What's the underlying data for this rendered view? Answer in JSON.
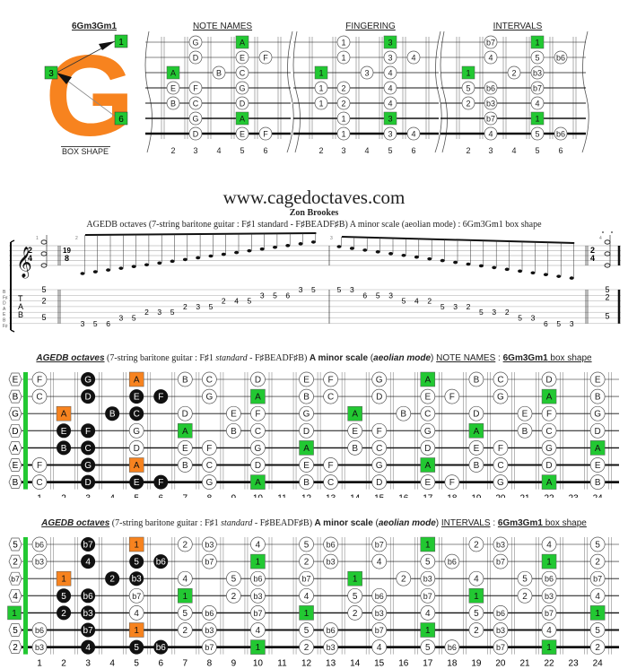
{
  "header": {
    "shape_name": "6Gm3Gm1",
    "shape_letter": "G",
    "box_shape_label": "BOX SHAPE",
    "markers": [
      "1",
      "3",
      "6"
    ],
    "colors": {
      "orange": "#f7831f",
      "green": "#22c832",
      "black": "#111111"
    }
  },
  "mini_diagrams": [
    {
      "title": "NOTE NAMES",
      "frets": [
        "2",
        "3",
        "4",
        "5",
        "6"
      ],
      "rows": [
        [
          null,
          "G",
          null,
          "A*",
          null
        ],
        [
          null,
          "D",
          null,
          "E",
          "F"
        ],
        [
          "A*",
          null,
          "B",
          "C",
          null
        ],
        [
          "E",
          "F",
          null,
          "G",
          null
        ],
        [
          "B",
          "C",
          null,
          "D",
          null
        ],
        [
          null,
          "G",
          null,
          "A*",
          null
        ],
        [
          null,
          "D",
          null,
          "E",
          "F"
        ]
      ]
    },
    {
      "title": "FINGERING",
      "frets": [
        "2",
        "3",
        "4",
        "5",
        "6"
      ],
      "rows": [
        [
          null,
          "1",
          null,
          "3*",
          null
        ],
        [
          null,
          "1",
          null,
          "3",
          "4"
        ],
        [
          "1*",
          null,
          "3",
          "4",
          null
        ],
        [
          "1",
          "2",
          null,
          "4",
          null
        ],
        [
          "1",
          "2",
          null,
          "4",
          null
        ],
        [
          null,
          "1",
          null,
          "3*",
          null
        ],
        [
          null,
          "1",
          null,
          "3",
          "4"
        ]
      ]
    },
    {
      "title": "INTERVALS",
      "frets": [
        "2",
        "3",
        "4",
        "5",
        "6"
      ],
      "rows": [
        [
          null,
          "b7",
          null,
          "1*",
          null
        ],
        [
          null,
          "4",
          null,
          "5",
          "b6"
        ],
        [
          "1*",
          null,
          "2",
          "b3",
          null
        ],
        [
          "5",
          "b6",
          null,
          "b7",
          null
        ],
        [
          "2",
          "b3",
          null,
          "4",
          null
        ],
        [
          null,
          "b7",
          null,
          "1*",
          null
        ],
        [
          null,
          "4",
          null,
          "5",
          "b6"
        ]
      ]
    }
  ],
  "site": {
    "url": "www.cagedoctaves.com",
    "author": "Zon Brookes",
    "subtitle": "AGEDB octaves (7-string baritone guitar : F♯1 standard - F♯BEADF♯B) A minor scale (aeolian mode) : 6Gm3Gm1 box shape"
  },
  "notation": {
    "time_sig_1": [
      "2",
      "4"
    ],
    "time_sig_2": [
      "19",
      "8"
    ],
    "tab_label": [
      "T",
      "A",
      "B"
    ],
    "tuning_labels": [
      "B",
      "F♯",
      "D",
      "A",
      "E",
      "B",
      "F♯"
    ],
    "measure_numbers": [
      "1",
      "2",
      "3",
      "4"
    ],
    "chord_tab": [
      "5",
      "2",
      "5"
    ],
    "ascending_tab": [
      {
        "s": 7,
        "f": "3"
      },
      {
        "s": 7,
        "f": "5"
      },
      {
        "s": 7,
        "f": "6"
      },
      {
        "s": 6,
        "f": "3"
      },
      {
        "s": 6,
        "f": "5"
      },
      {
        "s": 5,
        "f": "2"
      },
      {
        "s": 5,
        "f": "3"
      },
      {
        "s": 5,
        "f": "5"
      },
      {
        "s": 4,
        "f": "2"
      },
      {
        "s": 4,
        "f": "3"
      },
      {
        "s": 4,
        "f": "5"
      },
      {
        "s": 3,
        "f": "2"
      },
      {
        "s": 3,
        "f": "4"
      },
      {
        "s": 3,
        "f": "5"
      },
      {
        "s": 2,
        "f": "3"
      },
      {
        "s": 2,
        "f": "5"
      },
      {
        "s": 2,
        "f": "6"
      },
      {
        "s": 1,
        "f": "3"
      },
      {
        "s": 1,
        "f": "5"
      }
    ],
    "descending_tab": [
      {
        "s": 1,
        "f": "5"
      },
      {
        "s": 1,
        "f": "3"
      },
      {
        "s": 2,
        "f": "6"
      },
      {
        "s": 2,
        "f": "5"
      },
      {
        "s": 2,
        "f": "3"
      },
      {
        "s": 3,
        "f": "5"
      },
      {
        "s": 3,
        "f": "4"
      },
      {
        "s": 3,
        "f": "2"
      },
      {
        "s": 4,
        "f": "5"
      },
      {
        "s": 4,
        "f": "3"
      },
      {
        "s": 4,
        "f": "2"
      },
      {
        "s": 5,
        "f": "5"
      },
      {
        "s": 5,
        "f": "3"
      },
      {
        "s": 5,
        "f": "2"
      },
      {
        "s": 6,
        "f": "5"
      },
      {
        "s": 6,
        "f": "3"
      },
      {
        "s": 7,
        "f": "6"
      },
      {
        "s": 7,
        "f": "5"
      },
      {
        "s": 7,
        "f": "3"
      }
    ]
  },
  "fretboard_notes": {
    "title_bold_italic": "AGEDB octaves",
    "title_mid": " (7-string baritone guitar : F♯1 ",
    "title_italic": "standard",
    "title_mid2": " - F♯BEADF♯B) ",
    "title_bold": "A minor scale",
    "title_paren_open": " (",
    "title_bold_italic2": "aeolian mode",
    "title_paren_close": ") ",
    "title_section": "NOTE NAMES",
    "title_colon": " : ",
    "title_shape": "6Gm3Gm1",
    "title_tail": " box shape",
    "open": [
      "E",
      "B",
      "G",
      "D",
      "A",
      "E",
      "B"
    ],
    "strings": [
      {
        "1": "F",
        "3": "G#",
        "5": "A^",
        "7": "B",
        "8": "C",
        "10": "D",
        "12": "E",
        "13": "F",
        "15": "G",
        "17": "A*",
        "19": "B",
        "20": "C",
        "22": "D",
        "24": "E"
      },
      {
        "1": "C",
        "3": "D#",
        "5": "E#",
        "6": "F#",
        "8": "G",
        "10": "A*",
        "12": "B",
        "13": "C",
        "15": "D",
        "17": "E",
        "18": "F",
        "20": "G",
        "22": "A*",
        "24": "B"
      },
      {
        "2": "A^",
        "4": "B#",
        "5": "C#",
        "7": "D",
        "9": "E",
        "10": "F",
        "12": "G",
        "14": "A*",
        "16": "B",
        "17": "C",
        "19": "D",
        "21": "E",
        "22": "F",
        "24": "G"
      },
      {
        "2": "E#",
        "3": "F#",
        "5": "G",
        "7": "A*",
        "9": "B",
        "10": "C",
        "12": "D",
        "14": "E",
        "15": "F",
        "17": "G",
        "19": "A*",
        "21": "B",
        "22": "C",
        "24": "D"
      },
      {
        "0": "A*",
        "2": "B#",
        "3": "C#",
        "5": "D",
        "7": "E",
        "8": "F",
        "10": "G",
        "12": "A*",
        "14": "B",
        "15": "C",
        "17": "D",
        "19": "E",
        "20": "F",
        "22": "G",
        "24": "A*"
      },
      {
        "1": "F",
        "3": "G#",
        "5": "A^",
        "7": "B",
        "8": "C",
        "10": "D",
        "12": "E",
        "13": "F",
        "15": "G",
        "17": "A*",
        "19": "B",
        "20": "C",
        "22": "D",
        "24": "E"
      },
      {
        "1": "C",
        "3": "D#",
        "5": "E#",
        "6": "F#",
        "8": "G",
        "10": "A*",
        "12": "B",
        "13": "C",
        "15": "D",
        "17": "E",
        "18": "F",
        "20": "G",
        "22": "A*",
        "24": "B"
      }
    ],
    "frets": [
      "1",
      "2",
      "3",
      "4",
      "5",
      "6",
      "7",
      "8",
      "9",
      "10",
      "11",
      "12",
      "13",
      "14",
      "15",
      "16",
      "17",
      "18",
      "19",
      "20",
      "21",
      "22",
      "23",
      "24"
    ]
  },
  "fretboard_intervals": {
    "title_section": "INTERVALS",
    "open": [
      "5",
      "2",
      "b7",
      "4",
      "1*",
      "5",
      "2"
    ],
    "strings": [
      {
        "1": "b6",
        "3": "b7#",
        "5": "1^",
        "7": "2",
        "8": "b3",
        "10": "4",
        "12": "5",
        "13": "b6",
        "15": "b7",
        "17": "1*",
        "19": "2",
        "20": "b3",
        "22": "4",
        "24": "5"
      },
      {
        "1": "b3",
        "3": "4#",
        "5": "5#",
        "6": "b6#",
        "8": "b7",
        "10": "1*",
        "12": "2",
        "13": "b3",
        "15": "4",
        "17": "5",
        "18": "b6",
        "20": "b7",
        "22": "1*",
        "24": "2"
      },
      {
        "2": "1^",
        "4": "2#",
        "5": "b3#",
        "7": "4",
        "9": "5",
        "10": "b6",
        "12": "b7",
        "14": "1*",
        "16": "2",
        "17": "b3",
        "19": "4",
        "21": "5",
        "22": "b6",
        "24": "b7"
      },
      {
        "2": "5#",
        "3": "b6#",
        "5": "b7",
        "7": "1*",
        "9": "2",
        "10": "b3",
        "12": "4",
        "14": "5",
        "15": "b6",
        "17": "b7",
        "19": "1*",
        "21": "2",
        "22": "b3",
        "24": "4"
      },
      {
        "2": "2#",
        "3": "b3#",
        "5": "4",
        "7": "5",
        "8": "b6",
        "10": "b7",
        "12": "1*",
        "14": "2",
        "15": "b3",
        "17": "4",
        "19": "5",
        "20": "b6",
        "22": "b7",
        "24": "1*"
      },
      {
        "1": "b6",
        "3": "b7#",
        "5": "1^",
        "7": "2",
        "8": "b3",
        "10": "4",
        "12": "5",
        "13": "b6",
        "15": "b7",
        "17": "1*",
        "19": "2",
        "20": "b3",
        "22": "4",
        "24": "5"
      },
      {
        "1": "b3",
        "3": "4#",
        "5": "5#",
        "6": "b6#",
        "8": "b7",
        "10": "1*",
        "12": "2",
        "13": "b3",
        "15": "4",
        "17": "5",
        "18": "b6",
        "20": "b7",
        "22": "1*",
        "24": "2"
      }
    ]
  }
}
